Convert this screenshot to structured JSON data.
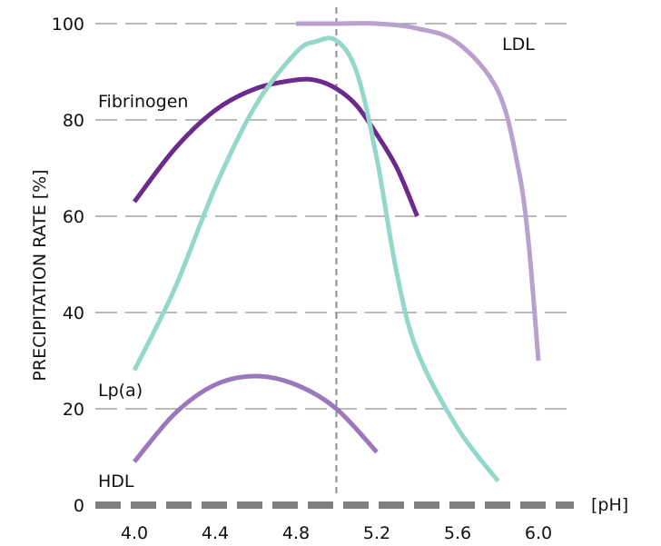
{
  "chart_data": {
    "type": "line",
    "title": "",
    "xlabel": "[pH]",
    "ylabel": "PRECIPITATION RATE [%]",
    "xlim": [
      3.85,
      6.2
    ],
    "ylim": [
      0,
      100
    ],
    "x_ticks": [
      "4.0",
      "4.4",
      "4.8",
      "5.2",
      "5.6",
      "6.0"
    ],
    "x_tick_values": [
      4.0,
      4.4,
      4.8,
      5.2,
      5.6,
      6.0
    ],
    "y_ticks": [
      "0",
      "20",
      "40",
      "60",
      "80",
      "100"
    ],
    "y_tick_values": [
      0,
      20,
      40,
      60,
      80,
      100
    ],
    "grid": "horizontal dashed",
    "reference_line": {
      "x": 5.0,
      "style": "dashed"
    },
    "series": [
      {
        "name": "LDL",
        "color": "#b9a0cf",
        "points": [
          [
            4.8,
            100
          ],
          [
            5.0,
            100
          ],
          [
            5.2,
            100
          ],
          [
            5.4,
            99
          ],
          [
            5.6,
            96
          ],
          [
            5.8,
            86
          ],
          [
            5.9,
            70
          ],
          [
            5.95,
            55
          ],
          [
            6.0,
            30
          ]
        ]
      },
      {
        "name": "Fibrinogen",
        "color": "#6b2a8c",
        "points": [
          [
            4.0,
            63
          ],
          [
            4.2,
            74
          ],
          [
            4.4,
            82
          ],
          [
            4.6,
            86.5
          ],
          [
            4.8,
            88.3
          ],
          [
            4.9,
            88.2
          ],
          [
            5.0,
            86.5
          ],
          [
            5.1,
            83
          ],
          [
            5.2,
            77
          ],
          [
            5.3,
            70
          ],
          [
            5.4,
            60
          ]
        ]
      },
      {
        "name": "Lp(a)",
        "color": "#93d8c8",
        "points": [
          [
            4.0,
            28
          ],
          [
            4.2,
            45
          ],
          [
            4.4,
            66
          ],
          [
            4.6,
            83
          ],
          [
            4.8,
            94
          ],
          [
            4.9,
            96.3
          ],
          [
            5.0,
            96.5
          ],
          [
            5.1,
            90
          ],
          [
            5.2,
            72
          ],
          [
            5.3,
            48
          ],
          [
            5.4,
            32
          ],
          [
            5.6,
            16
          ],
          [
            5.8,
            5
          ]
        ]
      },
      {
        "name": "HDL",
        "color": "#9b77bb",
        "points": [
          [
            4.0,
            9
          ],
          [
            4.2,
            19
          ],
          [
            4.4,
            25
          ],
          [
            4.6,
            26.8
          ],
          [
            4.8,
            25
          ],
          [
            5.0,
            20
          ],
          [
            5.2,
            11
          ]
        ]
      }
    ]
  }
}
